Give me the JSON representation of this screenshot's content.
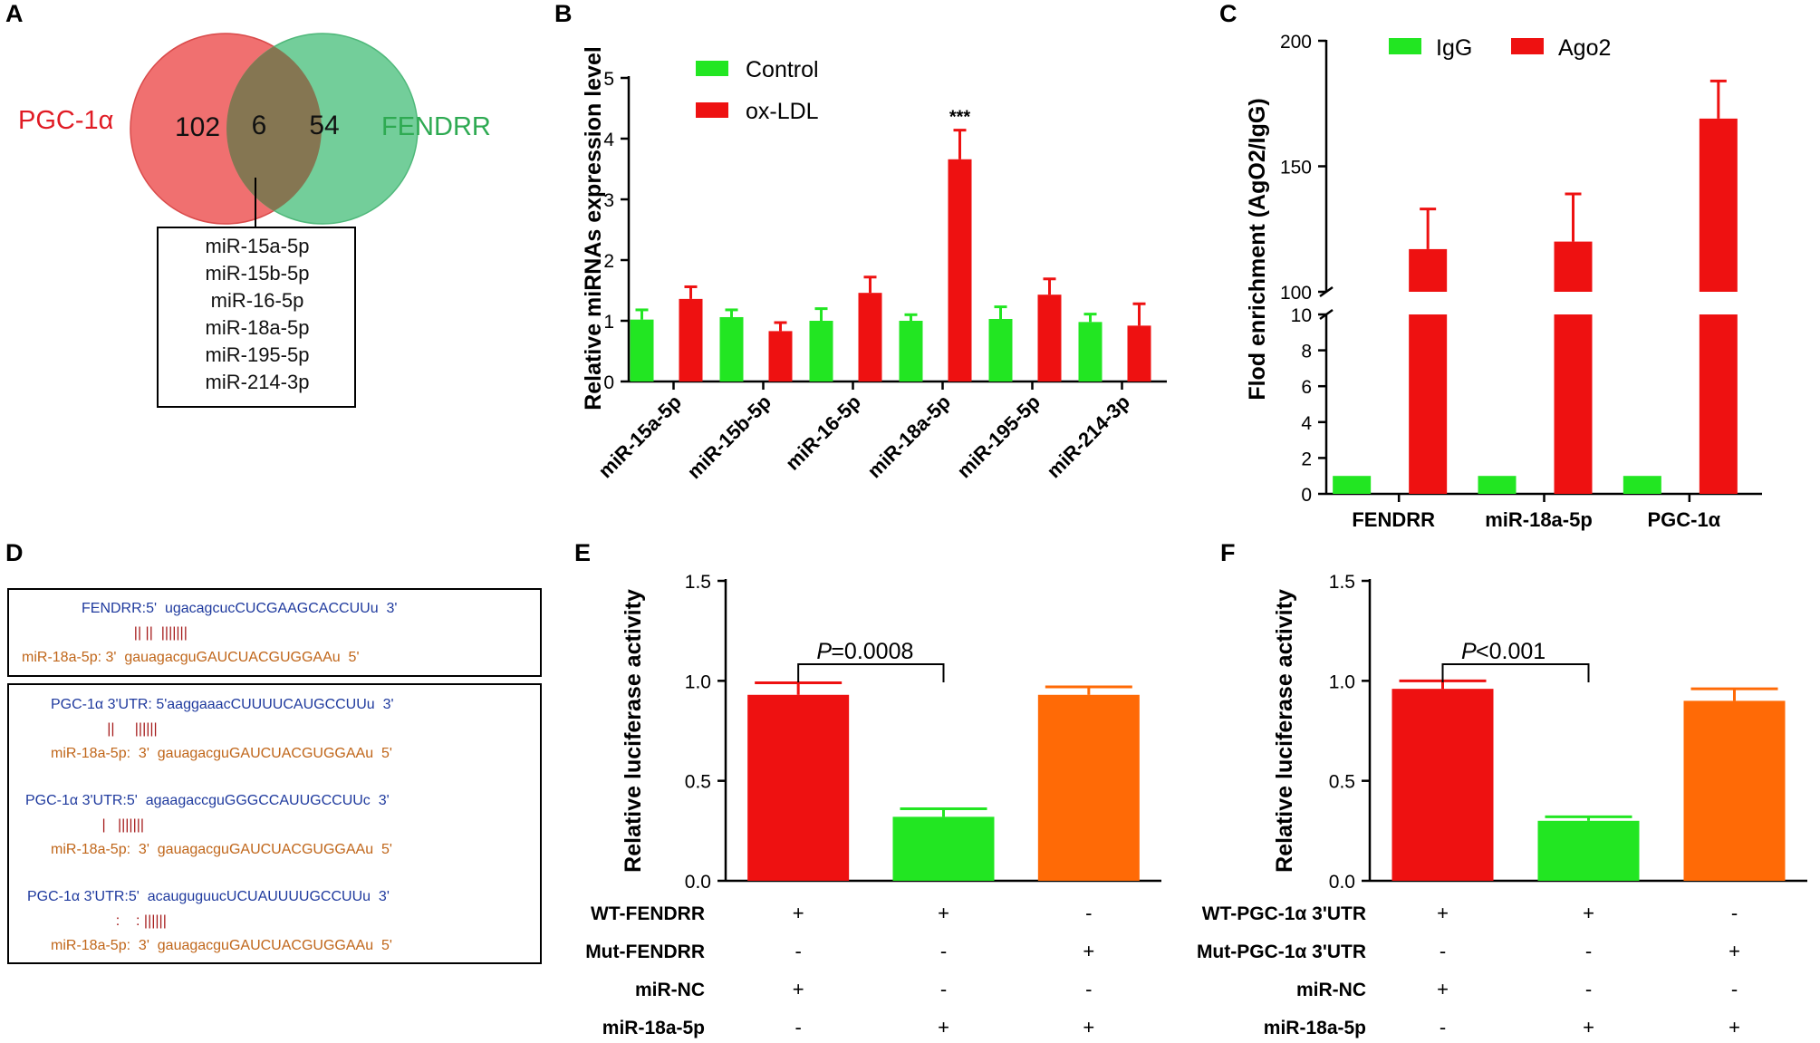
{
  "panels": {
    "A": {
      "letter": "A",
      "set_left_label": "PGC-1α",
      "set_right_label": "FENDRR",
      "left_only": "102",
      "overlap": "6",
      "right_only": "54",
      "overlap_list": [
        "miR-15a-5p",
        "miR-15b-5p",
        "miR-16-5p",
        "miR-18a-5p",
        "miR-195-5p",
        "miR-214-3p"
      ],
      "colors": {
        "left": "#f07070",
        "right": "#6ccb95",
        "overlap": "#857652",
        "left_label": "#e01b24",
        "right_label": "#2eaa52"
      }
    },
    "B": {
      "letter": "B"
    },
    "C": {
      "letter": "C"
    },
    "D": {
      "letter": "D",
      "box1": [
        {
          "text": "FENDRR:5'  ugacagcucCUCGAAGCACCUUu  3'",
          "color": "blue"
        },
        {
          "text": "             || ||  |||||||",
          "color": "bar"
        },
        {
          "text": "miR-18a-5p: 3'  gauagacguGAUCUACGUGGAAu  5'",
          "color": "orange"
        }
      ],
      "box2": [
        {
          "text": "PGC-1α 3'UTR: 5'aaggaaacCUUUUCAUGCCUUu  3'",
          "color": "blue"
        },
        {
          "text": "              ||     ||||||",
          "color": "bar"
        },
        {
          "text": "miR-18a-5p:  3'  gauagacguGAUCUACGUGGAAu  5'",
          "color": "orange"
        },
        {
          "text": "PGC-1α 3'UTR:5'  agaagaccguGGGCCAUUGCCUUc  3'",
          "color": "blue"
        },
        {
          "text": "                   |   |||||||",
          "color": "bar"
        },
        {
          "text": "miR-18a-5p:  3'  gauagacguGAUCUACGUGGAAu  5'",
          "color": "orange"
        },
        {
          "text": "PGC-1α 3'UTR:5'  acauguguucUCUAUUUUGCCUUu  3'",
          "color": "blue"
        },
        {
          "text": "                      :    : ||||||",
          "color": "bar"
        },
        {
          "text": "miR-18a-5p:  3'  gauagacguGAUCUACGUGGAAu  5'",
          "color": "orange"
        }
      ]
    },
    "E": {
      "letter": "E",
      "conditions": [
        {
          "name": "WT-FENDRR",
          "signs": [
            "+",
            "+",
            "-"
          ]
        },
        {
          "name": "Mut-FENDRR",
          "signs": [
            "-",
            "-",
            "+"
          ]
        },
        {
          "name": "miR-NC",
          "signs": [
            "+",
            "-",
            "-"
          ]
        },
        {
          "name": "miR-18a-5p",
          "signs": [
            "-",
            "+",
            "+"
          ]
        }
      ]
    },
    "F": {
      "letter": "F",
      "conditions": [
        {
          "name": "WT-PGC-1α 3'UTR",
          "signs": [
            "+",
            "+",
            "-"
          ]
        },
        {
          "name": "Mut-PGC-1α 3'UTR",
          "signs": [
            "-",
            "-",
            "+"
          ]
        },
        {
          "name": "miR-NC",
          "signs": [
            "+",
            "-",
            "-"
          ]
        },
        {
          "name": "miR-18a-5p",
          "signs": [
            "-",
            "+",
            "+"
          ]
        }
      ]
    }
  },
  "chart_data": [
    {
      "panel": "B",
      "type": "bar",
      "ylabel": "Relative miRNAs expression level",
      "ylim": [
        0,
        5
      ],
      "yticks": [
        0,
        1,
        2,
        3,
        4,
        5
      ],
      "categories": [
        "miR-15a-5p",
        "miR-15b-5p",
        "miR-16-5p",
        "miR-18a-5p",
        "miR-195-5p",
        "miR-214-3p"
      ],
      "series": [
        {
          "name": "Control",
          "color": "#22e622",
          "values": [
            1.02,
            1.06,
            1.0,
            1.0,
            1.03,
            0.98
          ],
          "errors": [
            0.16,
            0.12,
            0.2,
            0.1,
            0.2,
            0.13
          ]
        },
        {
          "name": "ox-LDL",
          "color": "#ee1111",
          "values": [
            1.36,
            0.83,
            1.46,
            3.66,
            1.43,
            0.92
          ],
          "errors": [
            0.2,
            0.14,
            0.26,
            0.48,
            0.26,
            0.36
          ]
        }
      ],
      "annotations": [
        {
          "category": "miR-18a-5p",
          "text": "***"
        }
      ]
    },
    {
      "panel": "C",
      "type": "bar",
      "ylabel": "Flod enrichment (AgO2/IgG)",
      "axis_break": {
        "lower": [
          0,
          10
        ],
        "upper": [
          100,
          200
        ]
      },
      "yticks_lower": [
        0,
        2,
        4,
        6,
        8,
        10
      ],
      "yticks_upper": [
        100,
        150,
        200
      ],
      "categories": [
        "FENDRR",
        "miR-18a-5p",
        "PGC-1α"
      ],
      "series": [
        {
          "name": "IgG",
          "color": "#22e622",
          "values": [
            1,
            1,
            1
          ],
          "errors": [
            0,
            0,
            0
          ]
        },
        {
          "name": "Ago2",
          "color": "#ee1111",
          "values": [
            117,
            120,
            169
          ],
          "errors": [
            16,
            19,
            15
          ]
        }
      ]
    },
    {
      "panel": "E",
      "type": "bar",
      "ylabel": "Relative luciferase activity",
      "ylim": [
        0,
        1.5
      ],
      "yticks": [
        "0.0",
        "0.5",
        "1.0",
        "1.5"
      ],
      "categories": [
        "1",
        "2",
        "3"
      ],
      "values": [
        0.93,
        0.32,
        0.93
      ],
      "errors": [
        0.06,
        0.04,
        0.04
      ],
      "colors": [
        "#ee1111",
        "#22e622",
        "#ff6a06"
      ],
      "annotation": {
        "from": 0,
        "to": 1,
        "prefix": "P",
        "text": "=0.0008"
      }
    },
    {
      "panel": "F",
      "type": "bar",
      "ylabel": "Relative luciferase activity",
      "ylim": [
        0,
        1.5
      ],
      "yticks": [
        "0.0",
        "0.5",
        "1.0",
        "1.5"
      ],
      "categories": [
        "1",
        "2",
        "3"
      ],
      "values": [
        0.96,
        0.3,
        0.9
      ],
      "errors": [
        0.04,
        0.02,
        0.06
      ],
      "colors": [
        "#ee1111",
        "#22e622",
        "#ff6a06"
      ],
      "annotation": {
        "from": 0,
        "to": 1,
        "prefix": "P",
        "text": "<0.001"
      }
    }
  ]
}
